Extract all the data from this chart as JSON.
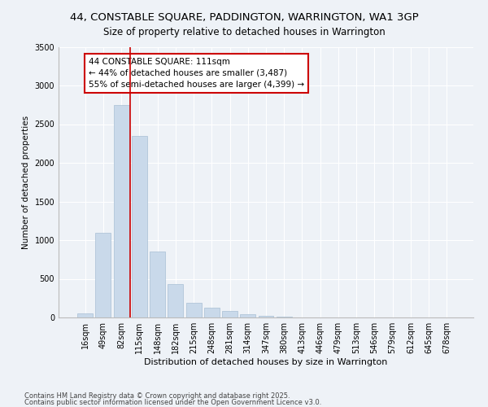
{
  "title": "44, CONSTABLE SQUARE, PADDINGTON, WARRINGTON, WA1 3GP",
  "subtitle": "Size of property relative to detached houses in Warrington",
  "xlabel": "Distribution of detached houses by size in Warrington",
  "ylabel": "Number of detached properties",
  "categories": [
    "16sqm",
    "49sqm",
    "82sqm",
    "115sqm",
    "148sqm",
    "182sqm",
    "215sqm",
    "248sqm",
    "281sqm",
    "314sqm",
    "347sqm",
    "380sqm",
    "413sqm",
    "446sqm",
    "479sqm",
    "513sqm",
    "546sqm",
    "579sqm",
    "612sqm",
    "645sqm",
    "678sqm"
  ],
  "values": [
    50,
    1100,
    2750,
    2350,
    850,
    430,
    190,
    130,
    80,
    40,
    20,
    10,
    5,
    3,
    2,
    1,
    1,
    0,
    0,
    0,
    0
  ],
  "bar_color": "#c9d9ea",
  "bar_edge_color": "#a8bfd4",
  "vline_x_index": 3,
  "vline_color": "#cc0000",
  "annotation_text": "44 CONSTABLE SQUARE: 111sqm\n← 44% of detached houses are smaller (3,487)\n55% of semi-detached houses are larger (4,399) →",
  "annotation_box_color": "#ffffff",
  "annotation_box_edge": "#cc0000",
  "footnote1": "Contains HM Land Registry data © Crown copyright and database right 2025.",
  "footnote2": "Contains public sector information licensed under the Open Government Licence v3.0.",
  "background_color": "#eef2f7",
  "ylim": [
    0,
    3500
  ],
  "yticks": [
    0,
    500,
    1000,
    1500,
    2000,
    2500,
    3000,
    3500
  ],
  "title_fontsize": 9.5,
  "subtitle_fontsize": 8.5,
  "xlabel_fontsize": 8,
  "ylabel_fontsize": 7.5,
  "tick_fontsize": 7,
  "annot_fontsize": 7.5,
  "footnote_fontsize": 6
}
